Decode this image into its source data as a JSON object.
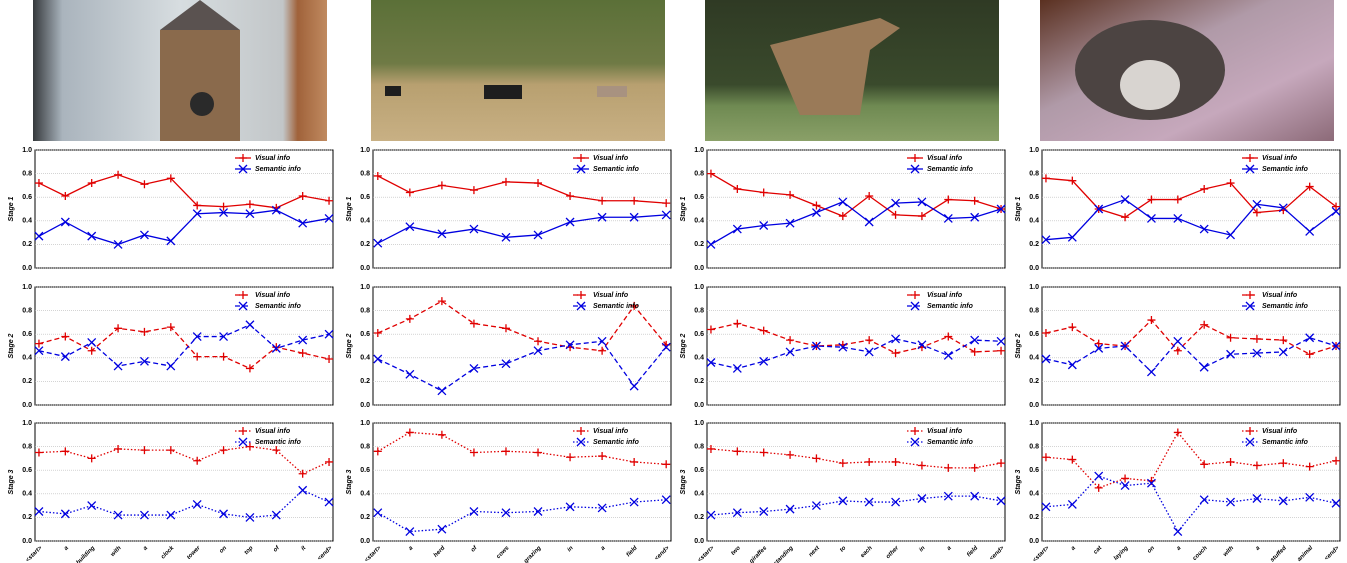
{
  "chart_data": [
    {
      "type": "line",
      "ylabel": "Stage 1",
      "line_style": "solid",
      "ylim": [
        0,
        1
      ],
      "yticks": [
        {
          "value": 0,
          "label": "0.0"
        },
        0.2,
        0.4,
        0.6,
        0.8,
        {
          "value": 1,
          "label": "1.0"
        }
      ],
      "grid": true,
      "legend": "upper right",
      "series": [
        {
          "name": "Visual info",
          "color": "#e00000",
          "marker": "+",
          "values": [
            0.72,
            0.61,
            0.72,
            0.79,
            0.71,
            0.76,
            0.53,
            0.52,
            0.54,
            0.51,
            0.61,
            0.57
          ]
        },
        {
          "name": "Semantic info",
          "color": "#0000e0",
          "marker": "x",
          "values": [
            0.27,
            0.39,
            0.27,
            0.2,
            0.28,
            0.23,
            0.46,
            0.47,
            0.46,
            0.49,
            0.38,
            0.42
          ]
        }
      ]
    },
    {
      "type": "line",
      "ylabel": "Stage 2",
      "line_style": "dashed",
      "ylim": [
        0,
        1
      ],
      "yticks": [
        {
          "value": 0,
          "label": "0.0"
        },
        0.2,
        0.4,
        0.6,
        0.8,
        {
          "value": 1,
          "label": "1.0"
        }
      ],
      "grid": true,
      "legend": "upper right",
      "series": [
        {
          "name": "Visual info",
          "color": "#e00000",
          "marker": "+",
          "values": [
            0.52,
            0.58,
            0.46,
            0.65,
            0.62,
            0.66,
            0.41,
            0.41,
            0.31,
            0.49,
            0.44,
            0.39
          ]
        },
        {
          "name": "Semantic info",
          "color": "#0000e0",
          "marker": "x",
          "values": [
            0.46,
            0.41,
            0.53,
            0.33,
            0.37,
            0.33,
            0.58,
            0.58,
            0.68,
            0.48,
            0.55,
            0.6
          ]
        }
      ]
    },
    {
      "type": "line",
      "ylabel": "Stage 3",
      "line_style": "dotted",
      "ylim": [
        0,
        1
      ],
      "yticks": [
        {
          "value": 0,
          "label": "0.0"
        },
        0.2,
        0.4,
        0.6,
        0.8,
        {
          "value": 1,
          "label": "1.0"
        }
      ],
      "grid": true,
      "legend": "upper right",
      "categories": [
        "<start>",
        "a",
        "building",
        "with",
        "a",
        "clock",
        "tower",
        "on",
        "top",
        "of",
        "it",
        "<end>"
      ],
      "series": [
        {
          "name": "Visual info",
          "color": "#e00000",
          "marker": "+",
          "values": [
            0.75,
            0.76,
            0.7,
            0.78,
            0.77,
            0.77,
            0.68,
            0.77,
            0.8,
            0.77,
            0.57,
            0.67
          ]
        },
        {
          "name": "Semantic info",
          "color": "#0000e0",
          "marker": "x",
          "values": [
            0.25,
            0.23,
            0.3,
            0.22,
            0.22,
            0.22,
            0.31,
            0.23,
            0.2,
            0.22,
            0.43,
            0.33
          ]
        }
      ]
    },
    {
      "type": "line",
      "ylabel": "Stage 1",
      "line_style": "solid",
      "ylim": [
        0,
        1
      ],
      "yticks": [
        {
          "value": 0,
          "label": "0.0"
        },
        0.2,
        0.4,
        0.6,
        0.8,
        {
          "value": 1,
          "label": "1.0"
        }
      ],
      "grid": true,
      "legend": "upper right",
      "series": [
        {
          "name": "Visual info",
          "color": "#e00000",
          "marker": "+",
          "values": [
            0.78,
            0.64,
            0.7,
            0.66,
            0.73,
            0.72,
            0.61,
            0.57,
            0.57,
            0.55
          ]
        },
        {
          "name": "Semantic info",
          "color": "#0000e0",
          "marker": "x",
          "values": [
            0.21,
            0.35,
            0.29,
            0.33,
            0.26,
            0.28,
            0.39,
            0.43,
            0.43,
            0.45
          ]
        }
      ]
    },
    {
      "type": "line",
      "ylabel": "Stage 2",
      "line_style": "dashed",
      "ylim": [
        0,
        1
      ],
      "yticks": [
        {
          "value": 0,
          "label": "0.0"
        },
        0.2,
        0.4,
        0.6,
        0.8,
        {
          "value": 1,
          "label": "1.0"
        }
      ],
      "grid": true,
      "legend": "upper right",
      "series": [
        {
          "name": "Visual info",
          "color": "#e00000",
          "marker": "+",
          "values": [
            0.61,
            0.73,
            0.88,
            0.69,
            0.65,
            0.54,
            0.49,
            0.46,
            0.84,
            0.51
          ]
        },
        {
          "name": "Semantic info",
          "color": "#0000e0",
          "marker": "x",
          "values": [
            0.39,
            0.26,
            0.12,
            0.31,
            0.35,
            0.46,
            0.51,
            0.54,
            0.16,
            0.49
          ]
        }
      ]
    },
    {
      "type": "line",
      "ylabel": "Stage 3",
      "line_style": "dotted",
      "ylim": [
        0,
        1
      ],
      "yticks": [
        {
          "value": 0,
          "label": "0.0"
        },
        0.2,
        0.4,
        0.6,
        0.8,
        {
          "value": 1,
          "label": "1.0"
        }
      ],
      "grid": true,
      "legend": "upper right",
      "categories": [
        "<start>",
        "a",
        "herd",
        "of",
        "cows",
        "grazing",
        "in",
        "a",
        "field",
        "<end>"
      ],
      "series": [
        {
          "name": "Visual info",
          "color": "#e00000",
          "marker": "+",
          "values": [
            0.76,
            0.92,
            0.9,
            0.75,
            0.76,
            0.75,
            0.71,
            0.72,
            0.67,
            0.65
          ]
        },
        {
          "name": "Semantic info",
          "color": "#0000e0",
          "marker": "x",
          "values": [
            0.24,
            0.08,
            0.1,
            0.25,
            0.24,
            0.25,
            0.29,
            0.28,
            0.33,
            0.35
          ]
        }
      ]
    },
    {
      "type": "line",
      "ylabel": "Stage 1",
      "line_style": "solid",
      "ylim": [
        0,
        1
      ],
      "yticks": [
        {
          "value": 0,
          "label": "0.0"
        },
        0.2,
        0.4,
        0.6,
        0.8,
        {
          "value": 1,
          "label": "1.0"
        }
      ],
      "grid": true,
      "legend": "upper right",
      "series": [
        {
          "name": "Visual info",
          "color": "#e00000",
          "marker": "+",
          "values": [
            0.8,
            0.67,
            0.64,
            0.62,
            0.53,
            0.44,
            0.61,
            0.45,
            0.44,
            0.58,
            0.57,
            0.5
          ]
        },
        {
          "name": "Semantic info",
          "color": "#0000e0",
          "marker": "x",
          "values": [
            0.2,
            0.33,
            0.36,
            0.38,
            0.47,
            0.56,
            0.39,
            0.55,
            0.56,
            0.42,
            0.43,
            0.5
          ]
        }
      ]
    },
    {
      "type": "line",
      "ylabel": "Stage 2",
      "line_style": "dashed",
      "ylim": [
        0,
        1
      ],
      "yticks": [
        {
          "value": 0,
          "label": "0.0"
        },
        0.2,
        0.4,
        0.6,
        0.8,
        {
          "value": 1,
          "label": "1.0"
        }
      ],
      "grid": true,
      "legend": "upper right",
      "series": [
        {
          "name": "Visual info",
          "color": "#e00000",
          "marker": "+",
          "values": [
            0.64,
            0.69,
            0.63,
            0.55,
            0.5,
            0.51,
            0.55,
            0.44,
            0.49,
            0.58,
            0.45,
            0.46
          ]
        },
        {
          "name": "Semantic info",
          "color": "#0000e0",
          "marker": "x",
          "values": [
            0.36,
            0.31,
            0.37,
            0.45,
            0.5,
            0.49,
            0.45,
            0.56,
            0.51,
            0.42,
            0.55,
            0.54
          ]
        }
      ]
    },
    {
      "type": "line",
      "ylabel": "Stage 3",
      "line_style": "dotted",
      "ylim": [
        0,
        1
      ],
      "yticks": [
        {
          "value": 0,
          "label": "0.0"
        },
        0.2,
        0.4,
        0.6,
        0.8,
        {
          "value": 1,
          "label": "1.0"
        }
      ],
      "grid": true,
      "legend": "upper right",
      "categories": [
        "<start>",
        "two",
        "giraffes",
        "standing",
        "next",
        "to",
        "each",
        "other",
        "in",
        "a",
        "field",
        "<end>"
      ],
      "series": [
        {
          "name": "Visual info",
          "color": "#e00000",
          "marker": "+",
          "values": [
            0.78,
            0.76,
            0.75,
            0.73,
            0.7,
            0.66,
            0.67,
            0.67,
            0.64,
            0.62,
            0.62,
            0.66
          ]
        },
        {
          "name": "Semantic info",
          "color": "#0000e0",
          "marker": "x",
          "values": [
            0.22,
            0.24,
            0.25,
            0.27,
            0.3,
            0.34,
            0.33,
            0.33,
            0.36,
            0.38,
            0.38,
            0.34
          ]
        }
      ]
    },
    {
      "type": "line",
      "ylabel": "Stage 1",
      "line_style": "solid",
      "ylim": [
        0,
        1
      ],
      "yticks": [
        {
          "value": 0,
          "label": "0.0"
        },
        0.2,
        0.4,
        0.6,
        0.8,
        {
          "value": 1,
          "label": "1.0"
        }
      ],
      "grid": true,
      "legend": "upper right",
      "series": [
        {
          "name": "Visual info",
          "color": "#e00000",
          "marker": "+",
          "values": [
            0.76,
            0.74,
            0.5,
            0.43,
            0.58,
            0.58,
            0.67,
            0.72,
            0.47,
            0.49,
            0.69,
            0.52
          ]
        },
        {
          "name": "Semantic info",
          "color": "#0000e0",
          "marker": "x",
          "values": [
            0.24,
            0.26,
            0.5,
            0.58,
            0.42,
            0.42,
            0.33,
            0.28,
            0.54,
            0.51,
            0.31,
            0.48
          ]
        }
      ]
    },
    {
      "type": "line",
      "ylabel": "Stage 2",
      "line_style": "dashed",
      "ylim": [
        0,
        1
      ],
      "yticks": [
        {
          "value": 0,
          "label": "0.0"
        },
        0.2,
        0.4,
        0.6,
        0.8,
        {
          "value": 1,
          "label": "1.0"
        }
      ],
      "grid": true,
      "legend": "upper right",
      "series": [
        {
          "name": "Visual info",
          "color": "#e00000",
          "marker": "+",
          "values": [
            0.61,
            0.66,
            0.52,
            0.5,
            0.72,
            0.46,
            0.68,
            0.57,
            0.56,
            0.55,
            0.43,
            0.5
          ]
        },
        {
          "name": "Semantic info",
          "color": "#0000e0",
          "marker": "x",
          "values": [
            0.39,
            0.34,
            0.48,
            0.5,
            0.28,
            0.54,
            0.32,
            0.43,
            0.44,
            0.45,
            0.57,
            0.5
          ]
        }
      ]
    },
    {
      "type": "line",
      "ylabel": "Stage 3",
      "line_style": "dotted",
      "ylim": [
        0,
        1
      ],
      "yticks": [
        {
          "value": 0,
          "label": "0.0"
        },
        0.2,
        0.4,
        0.6,
        0.8,
        {
          "value": 1,
          "label": "1.0"
        }
      ],
      "grid": true,
      "legend": "upper right",
      "categories": [
        "<start>",
        "a",
        "cat",
        "laying",
        "on",
        "a",
        "couch",
        "with",
        "a",
        "stuffed",
        "animal",
        "<end>"
      ],
      "series": [
        {
          "name": "Visual info",
          "color": "#e00000",
          "marker": "+",
          "values": [
            0.71,
            0.69,
            0.45,
            0.53,
            0.51,
            0.92,
            0.65,
            0.67,
            0.64,
            0.66,
            0.63,
            0.68
          ]
        },
        {
          "name": "Semantic info",
          "color": "#0000e0",
          "marker": "x",
          "values": [
            0.29,
            0.31,
            0.55,
            0.47,
            0.49,
            0.08,
            0.35,
            0.33,
            0.36,
            0.34,
            0.37,
            0.32
          ]
        }
      ]
    }
  ]
}
